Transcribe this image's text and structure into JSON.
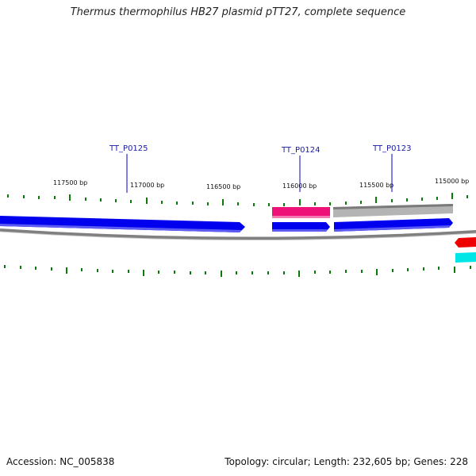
{
  "title": "Thermus thermophilus HB27 plasmid pTT27, complete sequence",
  "footer": {
    "accession": "Accession: NC_005838",
    "summary": "Topology: circular; Length: 232,605 bp; Genes: 228"
  },
  "map": {
    "scale_labels": [
      "117500 bp",
      "117000 bp",
      "116500 bp",
      "116000 bp",
      "115500 bp",
      "115000 bp"
    ],
    "gene_labels": [
      "TT_P0125",
      "TT_P0124",
      "TT_P0123"
    ],
    "colors": {
      "backbone": "#808080",
      "cds_blue": "#0000ee",
      "gene_pink": "#ee1177",
      "gene_gray": "#b4b4b4",
      "cds_red": "#ee0000",
      "cds_cyan": "#00e5e5",
      "ticks": "#0a7a0a",
      "label_line": "#0000cc"
    }
  }
}
